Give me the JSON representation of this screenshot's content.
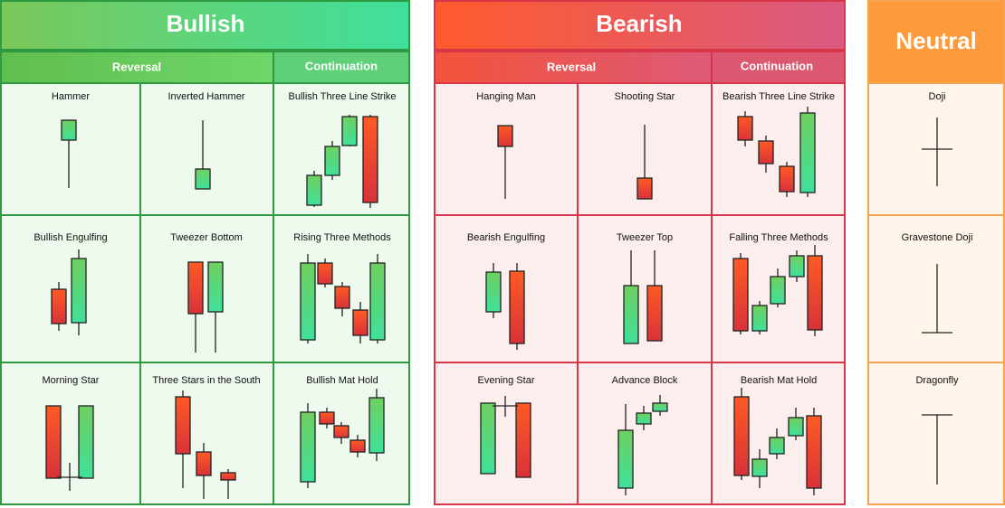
{
  "bullish": {
    "title": "Bullish",
    "reversal": "Reversal",
    "continuation": "Continuation",
    "patterns": [
      "Hammer",
      "Inverted Hammer",
      "Bullish Three Line Strike",
      "Bullish Engulfing",
      "Tweezer Bottom",
      "Rising Three Methods",
      "Morning Star",
      "Three Stars in the South",
      "Bullish Mat Hold"
    ]
  },
  "bearish": {
    "title": "Bearish",
    "reversal": "Reversal",
    "continuation": "Continuation",
    "patterns": [
      "Hanging Man",
      "Shooting Star",
      "Bearish Three Line Strike",
      "Bearish Engulfing",
      "Tweezer Top",
      "Falling Three Methods",
      "Evening Star",
      "Advance Block",
      "Bearish Mat Hold"
    ]
  },
  "neutral": {
    "title": "Neutral",
    "patterns": [
      "Doji",
      "Gravestone Doji",
      "Dragonfly"
    ]
  }
}
